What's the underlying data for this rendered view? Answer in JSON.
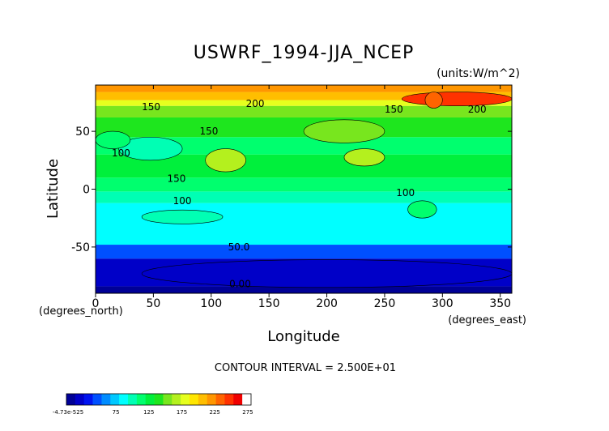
{
  "chart_data": {
    "type": "heatmap",
    "title": "USWRF_1994-JJA_NCEP",
    "units": "(units:W/m^2)",
    "xlabel": "Longitude",
    "ylabel": "Latitude",
    "x_unit_label": "(degrees_east)",
    "y_unit_label": "(degrees_north)",
    "xlim": [
      0,
      360
    ],
    "ylim": [
      -90,
      90
    ],
    "x_ticks": [
      0,
      50,
      100,
      150,
      200,
      250,
      300,
      350
    ],
    "y_ticks": [
      -50,
      0,
      50
    ],
    "contour_interval_text": "CONTOUR INTERVAL = 2.500E+01",
    "contour_labels": [
      {
        "text": "200",
        "x": 138,
        "y": 74
      },
      {
        "text": "150",
        "x": 48,
        "y": 71
      },
      {
        "text": "150",
        "x": 98,
        "y": 50
      },
      {
        "text": "150",
        "x": 258,
        "y": 69
      },
      {
        "text": "200",
        "x": 330,
        "y": 69
      },
      {
        "text": "100",
        "x": 22,
        "y": 31
      },
      {
        "text": "150",
        "x": 70,
        "y": 9
      },
      {
        "text": "100",
        "x": 75,
        "y": -10
      },
      {
        "text": "100",
        "x": 268,
        "y": -3
      },
      {
        "text": "50.0",
        "x": 124,
        "y": -50
      },
      {
        "text": "0.00",
        "x": 125,
        "y": -82
      }
    ],
    "latitude_bands": [
      {
        "lat_from": -90,
        "lat_to": -84,
        "value": 0
      },
      {
        "lat_from": -84,
        "lat_to": -60,
        "value": 25
      },
      {
        "lat_from": -60,
        "lat_to": -48,
        "value": 50
      },
      {
        "lat_from": -48,
        "lat_to": -12,
        "value": 87
      },
      {
        "lat_from": -12,
        "lat_to": -2,
        "value": 100
      },
      {
        "lat_from": -2,
        "lat_to": 10,
        "value": 112
      },
      {
        "lat_from": 10,
        "lat_to": 30,
        "value": 137
      },
      {
        "lat_from": 30,
        "lat_to": 45,
        "value": 125
      },
      {
        "lat_from": 45,
        "lat_to": 62,
        "value": 140
      },
      {
        "lat_from": 62,
        "lat_to": 72,
        "value": 160
      },
      {
        "lat_from": 72,
        "lat_to": 77,
        "value": 187
      },
      {
        "lat_from": 77,
        "lat_to": 84,
        "value": 212
      },
      {
        "lat_from": 84,
        "lat_to": 90,
        "value": 237
      }
    ],
    "features": [
      {
        "lon_from": 265,
        "lon_to": 360,
        "lat_from": 72,
        "lat_to": 84,
        "value": 262
      },
      {
        "lon_from": 285,
        "lon_to": 300,
        "lat_from": 70,
        "lat_to": 84,
        "value": 250
      },
      {
        "lon_from": 180,
        "lon_to": 250,
        "lat_from": 40,
        "lat_to": 60,
        "value": 162
      },
      {
        "lon_from": 215,
        "lon_to": 250,
        "lat_from": 20,
        "lat_to": 35,
        "value": 175
      },
      {
        "lon_from": 95,
        "lon_to": 130,
        "lat_from": 15,
        "lat_to": 35,
        "value": 175
      },
      {
        "lon_from": 20,
        "lon_to": 75,
        "lat_from": 25,
        "lat_to": 45,
        "value": 110
      },
      {
        "lon_from": 0,
        "lon_to": 30,
        "lat_from": 35,
        "lat_to": 50,
        "value": 115
      },
      {
        "lon_from": 270,
        "lon_to": 295,
        "lat_from": -25,
        "lat_to": -10,
        "value": 125
      },
      {
        "lon_from": 40,
        "lon_to": 110,
        "lat_from": -30,
        "lat_to": -18,
        "value": 100
      },
      {
        "lon_from": 40,
        "lon_to": 360,
        "lat_from": -85,
        "lat_to": -61,
        "value": 18
      }
    ],
    "colorbar": {
      "tick_labels": [
        "-4.73e-525",
        "75",
        "125",
        "175",
        "225",
        "275"
      ],
      "tick_values": [
        25,
        75,
        125,
        175,
        225,
        275
      ],
      "range": [
        0,
        280
      ],
      "colors": [
        "#000096",
        "#0000c8",
        "#0014f0",
        "#0050ff",
        "#008cff",
        "#00c8ff",
        "#00ffff",
        "#00ffb4",
        "#00ff6e",
        "#00f03c",
        "#1ee61e",
        "#78e61e",
        "#b4f01e",
        "#e6ff1e",
        "#ffe600",
        "#ffbe00",
        "#ff9600",
        "#ff6400",
        "#ff3200",
        "#f00000",
        "#ffffff"
      ]
    }
  }
}
